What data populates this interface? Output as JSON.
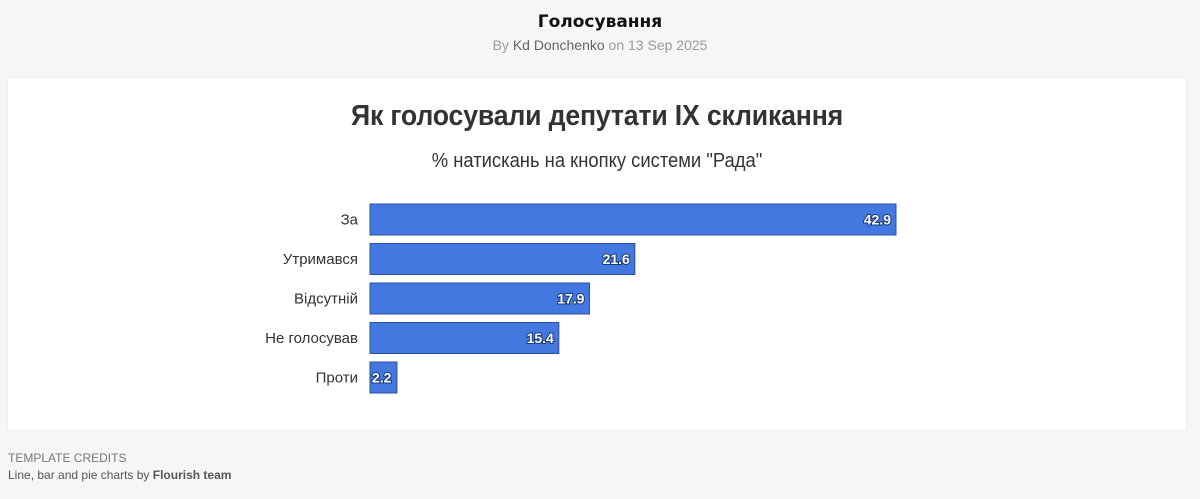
{
  "header": {
    "title": "Голосування",
    "by_prefix": "By",
    "author": "Kd Donchenko",
    "date_prefix": "on",
    "date": "13 Sep 2025"
  },
  "chart_data": {
    "type": "bar",
    "orientation": "horizontal",
    "title": "Як голосували депутати IX скликання",
    "subtitle": "% натискань на кнопку системи \"Рада\"",
    "categories": [
      "За",
      "Утримався",
      "Відсутній",
      "Не голосував",
      "Проти"
    ],
    "values": [
      42.9,
      21.6,
      17.9,
      15.4,
      2.2
    ],
    "xlim": [
      0,
      42.9
    ],
    "bar_color": "#4378e0",
    "data_labels": true,
    "grid": false
  },
  "credits": {
    "heading": "TEMPLATE CREDITS",
    "prefix": "Line, bar and pie charts by",
    "team": "Flourish team"
  }
}
